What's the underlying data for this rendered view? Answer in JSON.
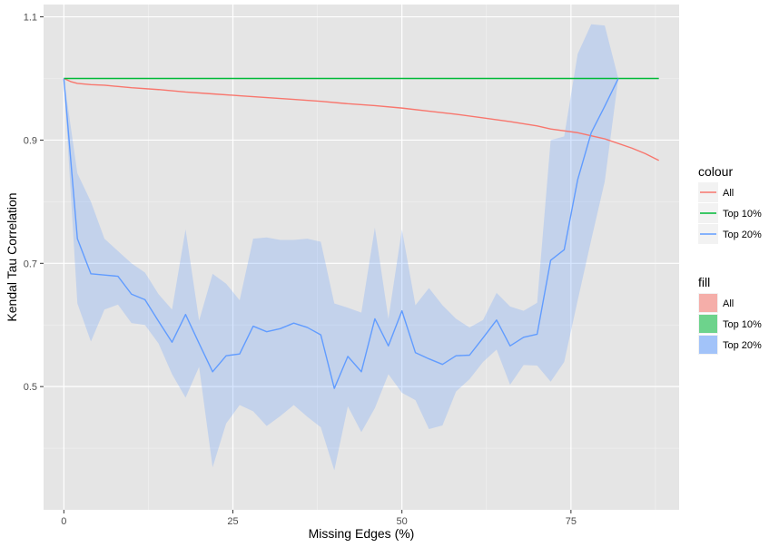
{
  "chart_data": {
    "type": "line",
    "title": "",
    "xlabel": "Missing Edges (%)",
    "ylabel": "Kendal Tau Correlation",
    "xlim": [
      -3,
      91
    ],
    "ylim": [
      0.3,
      1.12
    ],
    "x_ticks": [
      0,
      25,
      50,
      75
    ],
    "x_tick_labels": [
      "0",
      "25",
      "50",
      "75"
    ],
    "y_ticks": [
      0.5,
      0.7,
      0.9,
      1.1
    ],
    "y_tick_labels": [
      "0.5",
      "0.7",
      "0.9",
      "1.1"
    ],
    "grid": true,
    "background": "#e5e5e5",
    "legends": [
      {
        "title": "colour",
        "kind": "line",
        "entries": [
          {
            "label": "All",
            "color": "#f8766d"
          },
          {
            "label": "Top 10%",
            "color": "#00ba38"
          },
          {
            "label": "Top 20%",
            "color": "#619cff"
          }
        ]
      },
      {
        "title": "fill",
        "kind": "fill",
        "entries": [
          {
            "label": "All",
            "color": "#f8766d"
          },
          {
            "label": "Top 10%",
            "color": "#00ba38"
          },
          {
            "label": "Top 20%",
            "color": "#619cff"
          }
        ]
      }
    ],
    "ribbons": [
      {
        "series": "Top 20%",
        "color": "#619cff",
        "x": [
          0,
          2,
          4,
          6,
          8,
          10,
          12,
          14,
          16,
          18,
          20,
          22,
          24,
          26,
          28,
          30,
          32,
          34,
          36,
          38,
          40,
          42,
          44,
          46,
          48,
          50,
          52,
          54,
          56,
          58,
          60,
          62,
          64,
          66,
          68,
          70,
          72,
          74,
          76,
          78,
          80,
          82
        ],
        "lower": [
          1.0,
          0.635,
          0.573,
          0.625,
          0.633,
          0.603,
          0.6,
          0.57,
          0.52,
          0.482,
          0.532,
          0.369,
          0.44,
          0.47,
          0.46,
          0.436,
          0.452,
          0.47,
          0.451,
          0.434,
          0.364,
          0.468,
          0.426,
          0.465,
          0.52,
          0.49,
          0.478,
          0.431,
          0.437,
          0.492,
          0.512,
          0.54,
          0.56,
          0.503,
          0.535,
          0.534,
          0.508,
          0.54,
          0.64,
          0.738,
          0.833,
          1.0
        ],
        "upper": [
          1.0,
          0.846,
          0.8,
          0.74,
          0.72,
          0.7,
          0.685,
          0.65,
          0.625,
          0.755,
          0.607,
          0.683,
          0.667,
          0.64,
          0.74,
          0.742,
          0.738,
          0.738,
          0.74,
          0.735,
          0.635,
          0.628,
          0.62,
          0.758,
          0.61,
          0.755,
          0.632,
          0.66,
          0.632,
          0.61,
          0.596,
          0.608,
          0.652,
          0.63,
          0.623,
          0.636,
          0.9,
          0.906,
          1.04,
          1.088,
          1.086,
          1.0
        ]
      }
    ],
    "series": [
      {
        "name": "All",
        "color": "#f8766d",
        "x": [
          0,
          1,
          2,
          4,
          6,
          8,
          10,
          14,
          18,
          22,
          26,
          30,
          34,
          38,
          42,
          46,
          50,
          54,
          58,
          62,
          66,
          70,
          72,
          76,
          80,
          84,
          86,
          88
        ],
        "values": [
          1.0,
          0.995,
          0.992,
          0.99,
          0.989,
          0.987,
          0.985,
          0.982,
          0.978,
          0.975,
          0.972,
          0.969,
          0.966,
          0.963,
          0.959,
          0.956,
          0.952,
          0.947,
          0.942,
          0.936,
          0.93,
          0.923,
          0.918,
          0.912,
          0.902,
          0.887,
          0.878,
          0.867
        ]
      },
      {
        "name": "Top 10%",
        "color": "#00ba38",
        "x": [
          0,
          88
        ],
        "values": [
          1.0,
          1.0
        ]
      },
      {
        "name": "Top 20%",
        "color": "#619cff",
        "x": [
          0,
          2,
          4,
          6,
          8,
          10,
          12,
          14,
          16,
          18,
          20,
          22,
          24,
          26,
          28,
          30,
          32,
          34,
          36,
          38,
          40,
          42,
          44,
          46,
          48,
          50,
          52,
          54,
          56,
          58,
          60,
          62,
          64,
          66,
          68,
          70,
          72,
          74,
          76,
          78,
          80,
          82
        ],
        "values": [
          1.0,
          0.74,
          0.683,
          0.681,
          0.679,
          0.65,
          0.641,
          0.606,
          0.572,
          0.617,
          0.57,
          0.524,
          0.55,
          0.553,
          0.598,
          0.589,
          0.594,
          0.603,
          0.596,
          0.584,
          0.497,
          0.549,
          0.524,
          0.61,
          0.566,
          0.623,
          0.555,
          0.545,
          0.536,
          0.55,
          0.551,
          0.579,
          0.608,
          0.566,
          0.58,
          0.585,
          0.705,
          0.722,
          0.836,
          0.912,
          0.955,
          1.0
        ]
      }
    ]
  }
}
